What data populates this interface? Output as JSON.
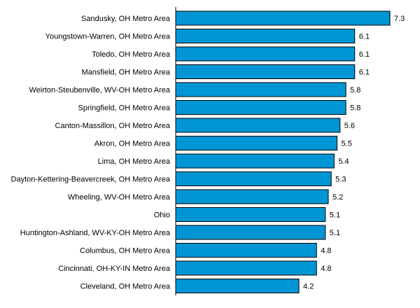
{
  "chart_data": {
    "type": "bar",
    "orientation": "horizontal",
    "title": "",
    "xlabel": "",
    "ylabel": "",
    "xlim": [
      0,
      7.3
    ],
    "grid": false,
    "legend": "none",
    "bar_color": "#0096d6",
    "categories": [
      "Sandusky, OH Metro Area",
      "Youngstown-Warren, OH Metro Area",
      "Toledo, OH Metro Area",
      "Mansfield, OH Metro Area",
      "Weirton-Steubenville, WV-OH Metro Area",
      "Springfield, OH Metro Area",
      "Canton-Massillon, OH Metro Area",
      "Akron, OH Metro Area",
      "Lima, OH Metro Area",
      "Dayton-Kettering-Beavercreek, OH Metro Area",
      "Wheeling, WV-OH Metro Area",
      "Ohio",
      "Huntington-Ashland, WV-KY-OH Metro Area",
      "Columbus, OH Metro Area",
      "Cincinnati, OH-KY-IN Metro Area",
      "Cleveland, OH Metro Area"
    ],
    "values": [
      7.3,
      6.1,
      6.1,
      6.1,
      5.8,
      5.8,
      5.6,
      5.5,
      5.4,
      5.3,
      5.2,
      5.1,
      5.1,
      4.8,
      4.8,
      4.2
    ],
    "value_labels": [
      "7.3",
      "6.1",
      "6.1",
      "6.1",
      "5.8",
      "5.8",
      "5.6",
      "5.5",
      "5.4",
      "5.3",
      "5.2",
      "5.1",
      "5.1",
      "4.8",
      "4.8",
      "4.2"
    ]
  }
}
